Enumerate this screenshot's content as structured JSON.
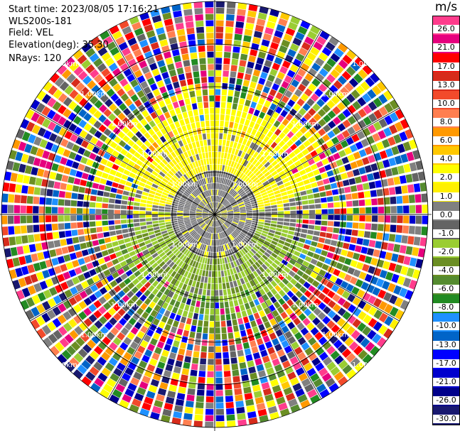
{
  "header": {
    "start_time": "Start time: 2023/08/05 17:16:21",
    "instrument": "WLS200s-181",
    "field": "Field: VEL",
    "elevation": "Elevation(deg): 35.30",
    "nrays": "NRays: 120"
  },
  "chart_data": {
    "type": "heatmap",
    "projection": "polar-ppi",
    "field": "VEL",
    "units": "m/s",
    "nrays": 120,
    "range_ring_label": "1.00km",
    "colorbar": {
      "title": "m/s",
      "ticks": [
        "26.0",
        "21.0",
        "17.0",
        "13.0",
        "10.0",
        "8.0",
        "6.0",
        "4.0",
        "2.0",
        "1.0",
        "0.0",
        "-1.0",
        "-2.0",
        "-4.0",
        "-6.0",
        "-8.0",
        "-10.0",
        "-13.0",
        "-17.0",
        "-21.0",
        "-26.0",
        "-30.0"
      ],
      "colors": [
        "#ff3c8c",
        "#e6007e",
        "#ff0000",
        "#d72b1b",
        "#f24a2b",
        "#ff7f50",
        "#ff9900",
        "#ffc800",
        "#ffff00",
        "#fff000",
        "#808080",
        "#646464",
        "#9acd32",
        "#6b8e23",
        "#558b2f",
        "#228b22",
        "#1e90ff",
        "#0064c8",
        "#0000ff",
        "#0000cd",
        "#00008b",
        "#191970"
      ]
    },
    "observed_velocity": {
      "center_band": "0.0 to -1.0 (grey)",
      "north_band": "1.0 to 2.0 (yellow)",
      "south_band": "-2.0 to -6.0 (green)",
      "outer_rings": "mixed / noisy values across full scale"
    }
  }
}
